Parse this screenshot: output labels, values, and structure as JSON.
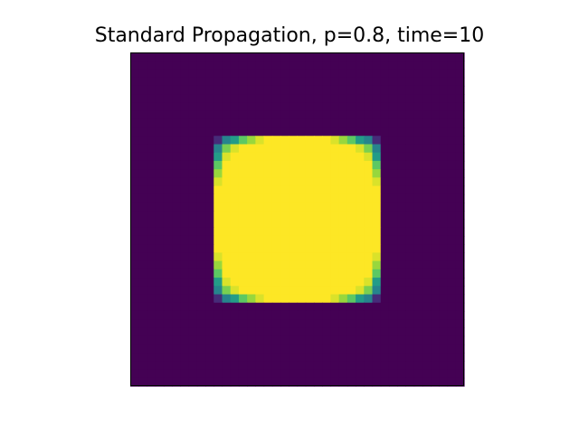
{
  "chart_data": {
    "type": "heatmap",
    "title": "Standard Propagation, p=0.8, time=10",
    "xlabel": "",
    "ylabel": "",
    "grid_size": 40,
    "colormap": "viridis",
    "value_range": [
      0,
      1
    ],
    "background_value": 0,
    "filled_block": {
      "row_start": 10,
      "row_end": 30,
      "col_start": 10,
      "col_end": 30
    },
    "corner_values": {
      "top_left": [
        [
          0.15,
          0.45,
          0.55,
          0.75,
          0.85,
          0.95
        ],
        [
          0.55,
          0.8,
          0.95,
          1,
          1,
          1
        ],
        [
          0.7,
          0.95,
          1,
          1,
          1,
          1
        ],
        [
          0.85,
          1,
          1,
          1,
          1,
          1
        ]
      ],
      "top_right": [
        [
          0.95,
          0.85,
          0.75,
          0.55,
          0.45,
          0.15
        ],
        [
          1,
          1,
          1,
          0.95,
          0.8,
          0.55
        ],
        [
          1,
          1,
          1,
          1,
          0.95,
          0.7
        ],
        [
          1,
          1,
          1,
          1,
          1,
          0.85
        ]
      ],
      "bottom_left": [
        [
          0.85,
          1,
          1,
          1,
          1,
          1
        ],
        [
          0.7,
          0.95,
          1,
          1,
          1,
          1
        ],
        [
          0.55,
          0.8,
          0.95,
          1,
          1,
          1
        ],
        [
          0.15,
          0.45,
          0.55,
          0.75,
          0.85,
          0.95
        ]
      ],
      "bottom_right": [
        [
          1,
          1,
          1,
          1,
          1,
          0.85
        ],
        [
          1,
          1,
          1,
          1,
          0.95,
          0.7
        ],
        [
          1,
          1,
          1,
          0.95,
          0.8,
          0.55
        ],
        [
          0.95,
          0.85,
          0.75,
          0.55,
          0.45,
          0.15
        ]
      ]
    },
    "axes_visible": false,
    "grid": false
  }
}
